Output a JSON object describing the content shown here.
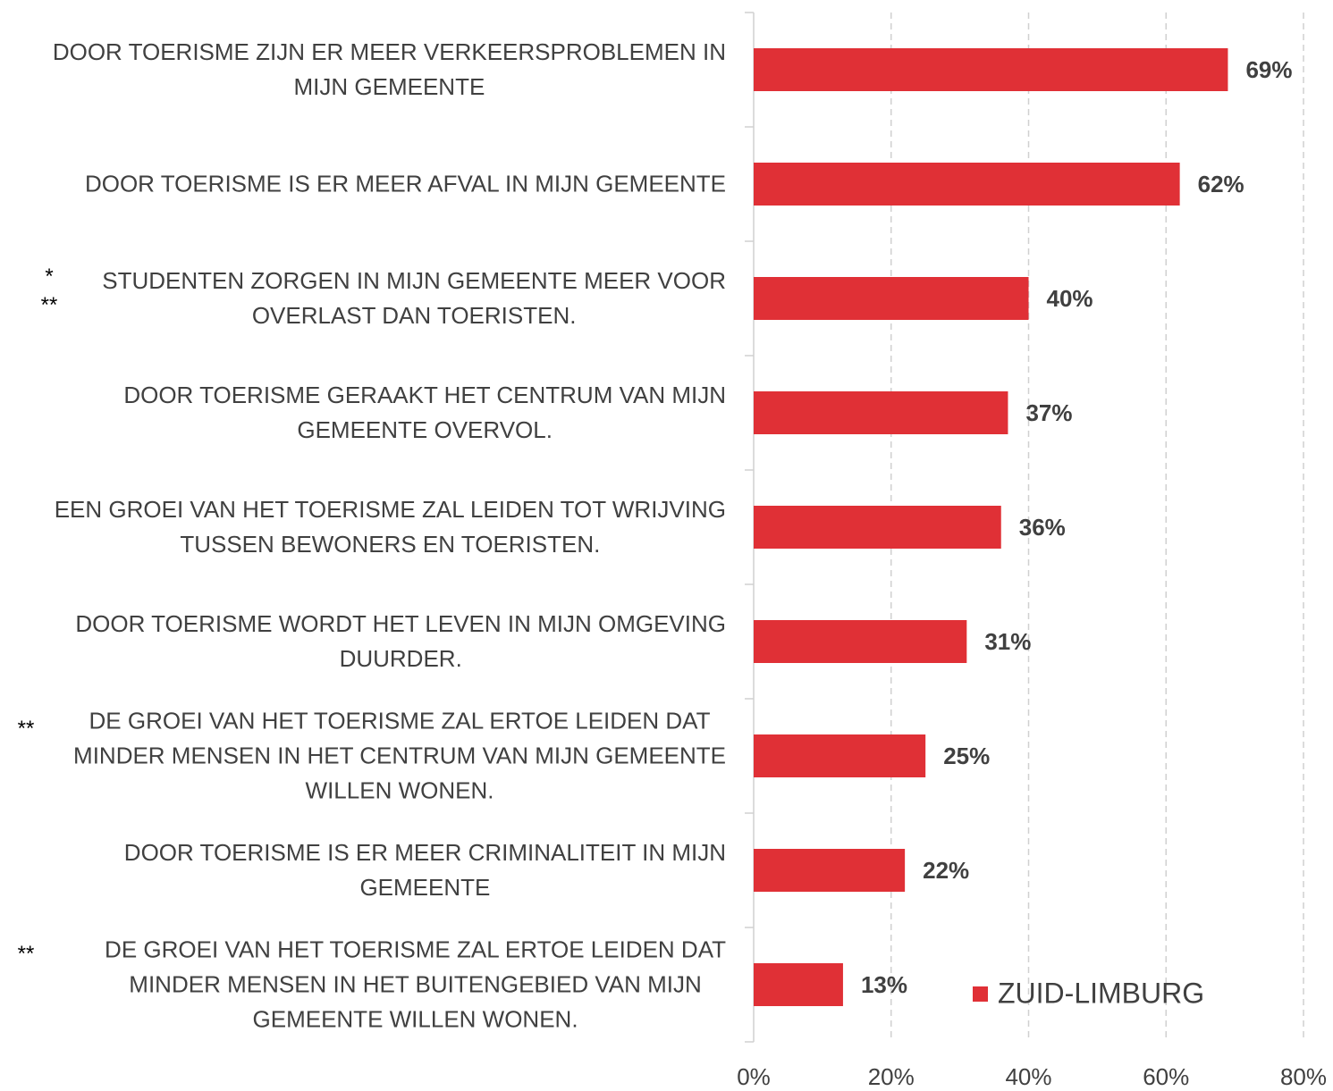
{
  "chart_data": {
    "type": "barh",
    "categories": [
      "DOOR TOERISME ZIJN ER MEER VERKEERSPROBLEMEN IN\nMIJN GEMEENTE",
      "DOOR TOERISME IS ER MEER AFVAL IN MIJN GEMEENTE",
      "STUDENTEN ZORGEN IN MIJN GEMEENTE MEER VOOR\nOVERLAST DAN TOERISTEN.",
      "DOOR TOERISME GERAAKT HET CENTRUM VAN MIJN\nGEMEENTE OVERVOL.",
      "EEN GROEI VAN HET TOERISME ZAL LEIDEN TOT WRIJVING\nTUSSEN BEWONERS EN TOERISTEN.",
      "DOOR TOERISME WORDT HET LEVEN IN MIJN OMGEVING\nDUURDER.",
      "DE GROEI VAN HET TOERISME ZAL ERTOE LEIDEN DAT\nMINDER MENSEN IN HET CENTRUM VAN MIJN GEMEENTE\nWILLEN WONEN.",
      "DOOR TOERISME IS ER MEER CRIMINALITEIT IN MIJN\nGEMEENTE",
      "DE GROEI VAN HET TOERISME ZAL ERTOE LEIDEN DAT\nMINDER MENSEN IN HET BUITENGEBIED VAN MIJN\nGEMEENTE WILLEN WONEN."
    ],
    "series": [
      {
        "name": "ZUID-LIMBURG",
        "color": "#e03036",
        "values": [
          69,
          62,
          40,
          37,
          36,
          31,
          25,
          22,
          13
        ],
        "value_labels": [
          "69%",
          "62%",
          "40%",
          "37%",
          "36%",
          "31%",
          "25%",
          "22%",
          "13%"
        ]
      }
    ],
    "annotations": [
      "*\n**",
      "**",
      "**"
    ],
    "xlim": [
      0,
      80
    ],
    "xticks": [
      {
        "value": 0,
        "label": "0%"
      },
      {
        "value": 20,
        "label": "20%"
      },
      {
        "value": 40,
        "label": "40%"
      },
      {
        "value": 60,
        "label": "60%"
      },
      {
        "value": 80,
        "label": "80%"
      }
    ],
    "grid": true,
    "legend": "lower right"
  }
}
